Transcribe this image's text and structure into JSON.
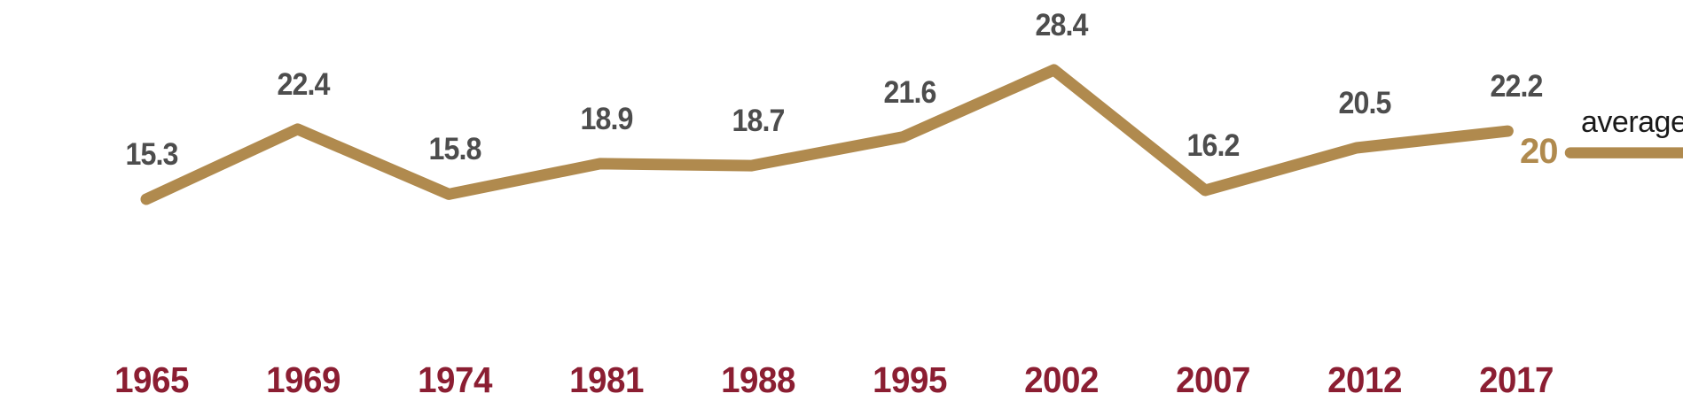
{
  "chart_data": {
    "type": "line",
    "title": "",
    "xlabel": "",
    "ylabel": "",
    "categories": [
      "1965",
      "1969",
      "1974",
      "1981",
      "1988",
      "1995",
      "2002",
      "2007",
      "2012",
      "2017"
    ],
    "values": [
      15.3,
      22.4,
      15.8,
      18.9,
      18.7,
      21.6,
      28.4,
      16.2,
      20.5,
      22.2
    ],
    "value_labels": [
      "15.3",
      "22.4",
      "15.8",
      "18.9",
      "18.7",
      "21.6",
      "28.4",
      "16.2",
      "20.5",
      "22.2"
    ],
    "average": {
      "label": "average",
      "value": 20,
      "value_label": "20"
    },
    "ylim": [
      15.3,
      28.4
    ],
    "grid": false,
    "y_axis_visible": false,
    "legend": {
      "position": "right",
      "entries": [
        "average"
      ]
    },
    "colors": {
      "line": "#B08A4E",
      "average_line": "#B08A4E",
      "value_label": "#4D4D4D",
      "year_label": "#8B1E32",
      "average_value": "#B08A4E",
      "average_text": "#1A1A1A",
      "background": "#FFFFFF"
    }
  }
}
